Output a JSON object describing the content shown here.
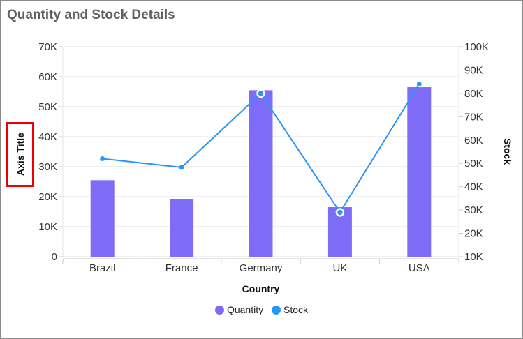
{
  "chart_data": {
    "type": "bar+line",
    "title": "Quantity and Stock Details",
    "xlabel": "Country",
    "ylabel": "Axis Title",
    "y2label": "Stock",
    "categories": [
      "Brazil",
      "France",
      "Germany",
      "UK",
      "USA"
    ],
    "ylim": [
      0,
      70000
    ],
    "yticks": [
      "0",
      "10K",
      "20K",
      "30K",
      "40K",
      "50K",
      "60K",
      "70K"
    ],
    "y2lim": [
      10000,
      100000
    ],
    "y2ticks": [
      "10K",
      "20K",
      "30K",
      "40K",
      "50K",
      "60K",
      "70K",
      "80K",
      "90K",
      "100K"
    ],
    "grid": true,
    "legend_position": "bottom",
    "series": [
      {
        "name": "Quantity",
        "type": "bar",
        "axis": "left",
        "color": "#7f6cf6",
        "values": [
          25500,
          19300,
          55500,
          16500,
          56500
        ]
      },
      {
        "name": "Stock",
        "type": "line",
        "axis": "right",
        "color": "#2b95f5",
        "values": [
          52000,
          48300,
          80000,
          29000,
          84000
        ]
      }
    ]
  }
}
